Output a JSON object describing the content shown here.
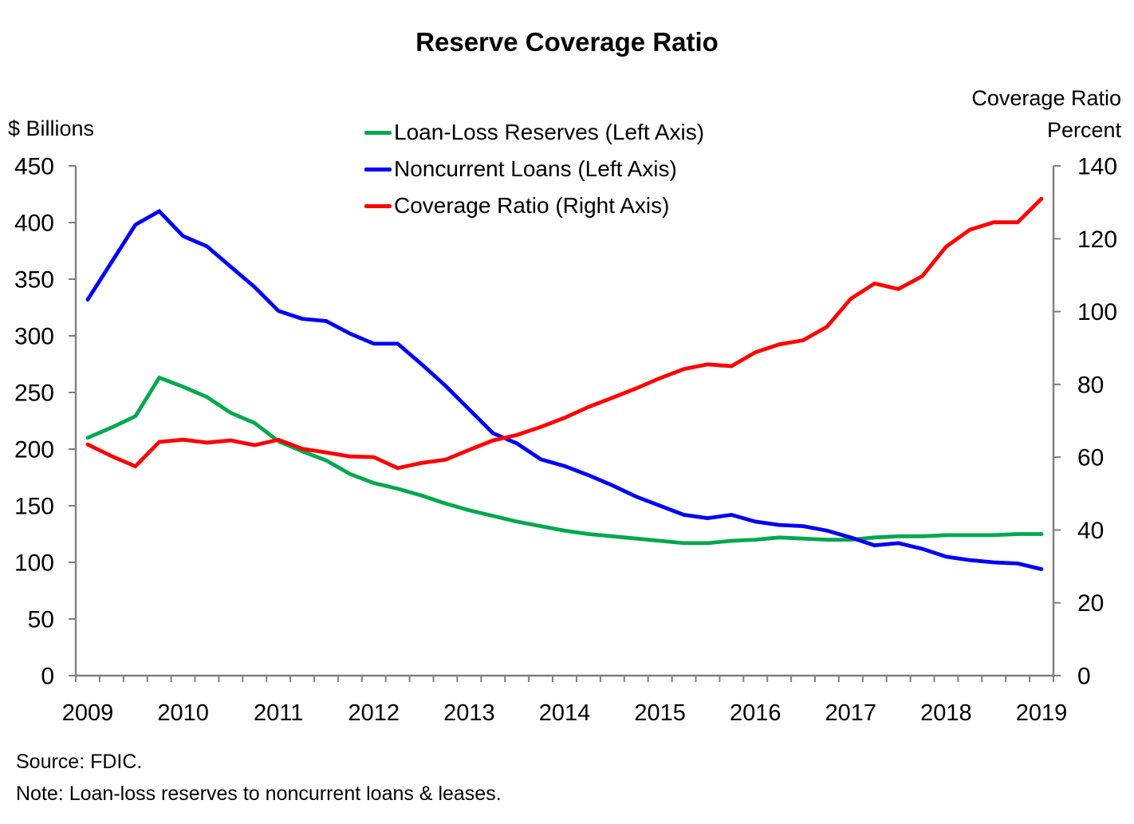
{
  "source": "Source: FDIC.",
  "note": "Note: Loan-loss reserves to noncurrent loans & leases.",
  "left_axis": {
    "unit_label": "$ Billions",
    "min": 0,
    "max": 450,
    "step": 50
  },
  "right_axis": {
    "label_line1": "Coverage Ratio",
    "label_line2": "Percent",
    "min": 0,
    "max": 140,
    "step": 20
  },
  "x_axis": {
    "years": [
      "2009",
      "2010",
      "2011",
      "2012",
      "2013",
      "2014",
      "2015",
      "2016",
      "2017",
      "2018",
      "2019"
    ],
    "quarters_per_year": 4
  },
  "colors": {
    "axis": "#7F7F7F",
    "text": "#000000"
  },
  "chart_data": {
    "type": "line",
    "title": "Reserve Coverage Ratio",
    "grid": false,
    "legend_position": "top-center-inside",
    "left_ylim": [
      0,
      450
    ],
    "right_ylim": [
      0,
      140
    ],
    "x": [
      "2009Q1",
      "2009Q2",
      "2009Q3",
      "2009Q4",
      "2010Q1",
      "2010Q2",
      "2010Q3",
      "2010Q4",
      "2011Q1",
      "2011Q2",
      "2011Q3",
      "2011Q4",
      "2012Q1",
      "2012Q2",
      "2012Q3",
      "2012Q4",
      "2013Q1",
      "2013Q2",
      "2013Q3",
      "2013Q4",
      "2014Q1",
      "2014Q2",
      "2014Q3",
      "2014Q4",
      "2015Q1",
      "2015Q2",
      "2015Q3",
      "2015Q4",
      "2016Q1",
      "2016Q2",
      "2016Q3",
      "2016Q4",
      "2017Q1",
      "2017Q2",
      "2017Q3",
      "2017Q4",
      "2018Q1",
      "2018Q2",
      "2018Q3",
      "2018Q4",
      "2019Q1"
    ],
    "series": [
      {
        "name": "Loan-Loss Reserves (Left Axis)",
        "axis": "left",
        "color": "#00A84D",
        "values": [
          210,
          219,
          229,
          263,
          255,
          246,
          232,
          223,
          207,
          198,
          190,
          178,
          170,
          165,
          159,
          152,
          146,
          141,
          136,
          132,
          128,
          125,
          123,
          121,
          119,
          117,
          117,
          119,
          120,
          122,
          121,
          120,
          120,
          122,
          123,
          123,
          124,
          124,
          124,
          125,
          125
        ]
      },
      {
        "name": "Noncurrent Loans (Left Axis)",
        "axis": "left",
        "color": "#0000F5",
        "values": [
          332,
          365,
          398,
          410,
          388,
          379,
          361,
          343,
          322,
          315,
          313,
          302,
          293,
          293,
          275,
          256,
          235,
          214,
          205,
          191,
          185,
          177,
          168,
          158,
          150,
          142,
          139,
          142,
          136,
          133,
          132,
          128,
          122,
          115,
          117,
          112,
          105,
          102,
          100,
          99,
          94
        ]
      },
      {
        "name": "Coverage Ratio (Right Axis)",
        "axis": "right",
        "color": "#FF0000",
        "values": [
          63.5,
          60.3,
          57.5,
          64.2,
          64.8,
          64.0,
          64.6,
          63.3,
          64.8,
          62.3,
          61.3,
          60.2,
          60.0,
          57.0,
          58.4,
          59.3,
          62.0,
          64.6,
          66.1,
          68.3,
          70.8,
          73.8,
          76.3,
          78.9,
          81.7,
          84.2,
          85.5,
          85.0,
          88.8,
          91.0,
          92.1,
          95.8,
          103.5,
          107.7,
          106.2,
          109.7,
          117.8,
          122.5,
          124.5,
          124.5,
          131.0
        ]
      }
    ]
  }
}
